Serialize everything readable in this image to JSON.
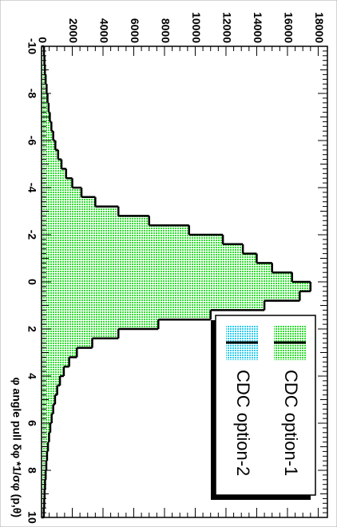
{
  "chart_data": {
    "type": "histogram",
    "xlabel": "φ angle pull   δφ *1/σφ (p,θ)",
    "bins": [
      -10,
      -9.6,
      -9.2,
      -8.8,
      -8.4,
      -8,
      -7.6,
      -7.2,
      -6.8,
      -6.4,
      -6,
      -5.6,
      -5.2,
      -4.8,
      -4.4,
      -4,
      -3.6,
      -3.2,
      -2.8,
      -2.4,
      -2,
      -1.6,
      -1.2,
      -0.8,
      -0.4,
      0,
      0.4,
      0.8,
      1.2,
      1.6,
      2,
      2.4,
      2.8,
      3.2,
      3.6,
      4,
      4.4,
      4.8,
      5.2,
      5.6,
      6,
      6.4,
      6.8,
      7.2,
      7.6,
      8,
      8.4,
      8.8,
      9.2,
      9.6,
      10
    ],
    "series": [
      {
        "name": "CDC option-1",
        "color": "#33dd33",
        "values": [
          160,
          190,
          220,
          270,
          330,
          390,
          460,
          540,
          640,
          760,
          900,
          1080,
          1300,
          1600,
          2000,
          2600,
          3500,
          5000,
          7000,
          9600,
          11800,
          13100,
          14000,
          15000,
          16300,
          17500,
          16800,
          14500,
          11000,
          7600,
          5000,
          3300,
          2300,
          1800,
          1450,
          1200,
          1020,
          880,
          760,
          660,
          570,
          490,
          420,
          360,
          310,
          270,
          230,
          200,
          175,
          150
        ]
      },
      {
        "name": "CDC option-2",
        "color": "#33ccee",
        "values": [
          160,
          190,
          220,
          270,
          330,
          390,
          460,
          540,
          640,
          760,
          900,
          1080,
          1300,
          1600,
          2000,
          2600,
          3500,
          5000,
          7000,
          9600,
          11800,
          13100,
          14000,
          15000,
          16300,
          17500,
          16800,
          14500,
          11000,
          7600,
          5000,
          3300,
          2300,
          1800,
          1450,
          1200,
          1020,
          880,
          760,
          660,
          570,
          490,
          420,
          360,
          310,
          270,
          230,
          200,
          175,
          150
        ]
      }
    ],
    "xlim": [
      -10,
      10
    ],
    "xticks": [
      -10,
      -8,
      -6,
      -4,
      -2,
      0,
      2,
      4,
      6,
      8,
      10
    ],
    "ylim": [
      0,
      18600
    ],
    "yticks": [
      0,
      2000,
      4000,
      6000,
      8000,
      10000,
      12000,
      14000,
      16000,
      18000
    ]
  }
}
